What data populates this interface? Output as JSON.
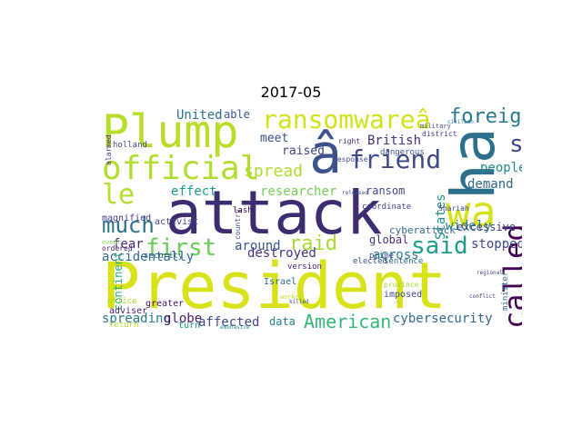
{
  "title": "2017-05",
  "words": [
    {
      "text": "President",
      "color": "#d8e219"
    },
    {
      "text": "attack",
      "color": "#3e2c70"
    },
    {
      "text": "Plump",
      "color": "#b8de29"
    },
    {
      "text": "official",
      "color": "#b0dd2f"
    },
    {
      "text": "ha",
      "color": "#2d708e"
    },
    {
      "text": "wa",
      "color": "#d8e219"
    },
    {
      "text": "â",
      "color": "#3b528b"
    },
    {
      "text": "ransomwareâ",
      "color": "#d2e21b"
    },
    {
      "text": "friend",
      "color": "#3e4a89"
    },
    {
      "text": "foreign",
      "color": "#2a788e"
    },
    {
      "text": "much",
      "color": "#2c728e"
    },
    {
      "text": "le",
      "color": "#b5de2b"
    },
    {
      "text": "first",
      "color": "#6ccd5a"
    },
    {
      "text": "said",
      "color": "#1f9e89"
    },
    {
      "text": "called",
      "color": "#440154"
    },
    {
      "text": "s",
      "color": "#3e4989"
    },
    {
      "text": "raid",
      "color": "#a8db34"
    },
    {
      "text": "American",
      "color": "#35b779"
    },
    {
      "text": "spread",
      "color": "#addc30"
    },
    {
      "text": "United",
      "color": "#2c728e"
    },
    {
      "text": "able",
      "color": "#38588c"
    },
    {
      "text": "British",
      "color": "#46327e"
    },
    {
      "text": "meet",
      "color": "#3a538b"
    },
    {
      "text": "raised",
      "color": "#404688"
    },
    {
      "text": "researcher",
      "color": "#73d056"
    },
    {
      "text": "ransom",
      "color": "#3e4a89"
    },
    {
      "text": "States",
      "color": "#21918c"
    },
    {
      "text": "widely",
      "color": "#26828e"
    },
    {
      "text": "people",
      "color": "#23898e"
    },
    {
      "text": "demand",
      "color": "#31688e"
    },
    {
      "text": "effect",
      "color": "#1f9a8a"
    },
    {
      "text": "fear",
      "color": "#472c7a"
    },
    {
      "text": "around",
      "color": "#39568c"
    },
    {
      "text": "destroyed",
      "color": "#46337f"
    },
    {
      "text": "accidentally",
      "color": "#31688e"
    },
    {
      "text": "across",
      "color": "#2a788e"
    },
    {
      "text": "global",
      "color": "#472d7b"
    },
    {
      "text": "stopped",
      "color": "#3e4a89"
    },
    {
      "text": "excessive",
      "color": "#3e4989"
    },
    {
      "text": "cyberattack",
      "color": "#2f6b8e"
    },
    {
      "text": "spreading",
      "color": "#287c8e"
    },
    {
      "text": "globe",
      "color": "#481a6c"
    },
    {
      "text": "affected",
      "color": "#3e4a89"
    },
    {
      "text": "data",
      "color": "#27808e"
    },
    {
      "text": "cybersecurity",
      "color": "#31688e"
    },
    {
      "text": "continent",
      "color": "#27ad81"
    },
    {
      "text": "country",
      "color": "#3b528b"
    },
    {
      "text": "magnified",
      "color": "#443983"
    },
    {
      "text": "activist",
      "color": "#414487"
    },
    {
      "text": "holland",
      "color": "#3e4989"
    },
    {
      "text": "alarmed",
      "color": "#46337f"
    },
    {
      "text": "security",
      "color": "#2e6e8e"
    },
    {
      "text": "adviser",
      "color": "#482374"
    },
    {
      "text": "office",
      "color": "#addc30"
    },
    {
      "text": "return",
      "color": "#b5de2b"
    },
    {
      "text": "greater",
      "color": "#471063"
    },
    {
      "text": "turn",
      "color": "#1f988b"
    },
    {
      "text": "Israel",
      "color": "#31688e"
    },
    {
      "text": "version",
      "color": "#482576"
    },
    {
      "text": "elected",
      "color": "#39558c"
    },
    {
      "text": "sentence",
      "color": "#2e6e8e"
    },
    {
      "text": "imposed",
      "color": "#3e4989"
    },
    {
      "text": "prime",
      "color": "#3b528b"
    },
    {
      "text": "minister",
      "color": "#2d708e"
    },
    {
      "text": "lash",
      "color": "#440154"
    },
    {
      "text": "response",
      "color": "#3e4a89"
    },
    {
      "text": "dangerous",
      "color": "#39568c"
    },
    {
      "text": "coordinate",
      "color": "#414487"
    },
    {
      "text": "right",
      "color": "#482475"
    },
    {
      "text": "Shariah",
      "color": "#3e4989"
    },
    {
      "text": "district",
      "color": "#46327e"
    },
    {
      "text": "ordered",
      "color": "#482878"
    },
    {
      "text": "event",
      "color": "#7ad151"
    },
    {
      "text": "worker",
      "color": "#b5de2b"
    },
    {
      "text": "emphasize",
      "color": "#21918c"
    },
    {
      "text": "killed",
      "color": "#39568c"
    },
    {
      "text": "province",
      "color": "#a2da37"
    },
    {
      "text": "military",
      "color": "#3e4989"
    },
    {
      "text": "civilian",
      "color": "#2c728e"
    },
    {
      "text": "released",
      "color": "#3b528b"
    },
    {
      "text": "conflict",
      "color": "#46327e"
    },
    {
      "text": "regional",
      "color": "#414487"
    }
  ]
}
